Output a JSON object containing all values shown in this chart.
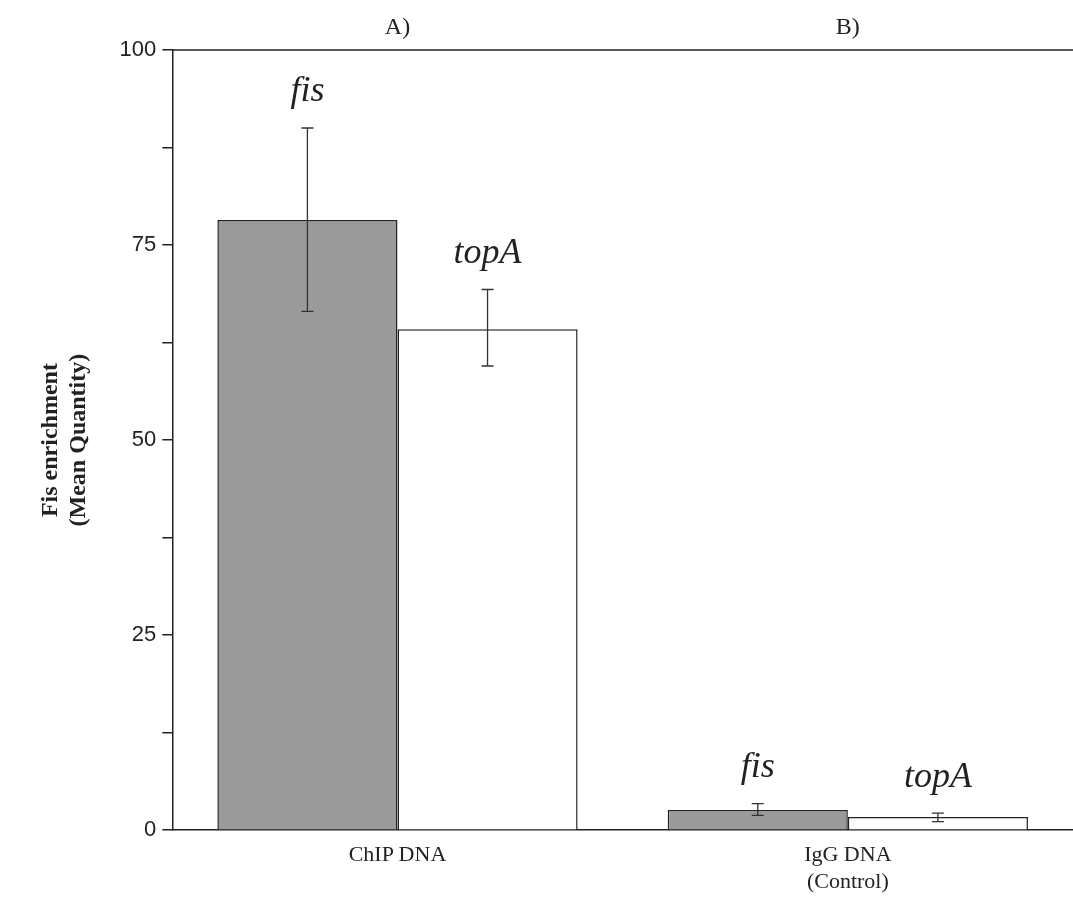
{
  "chart_data": {
    "type": "bar",
    "ylabel": "Fis enrichment\n(Mean Quantity)",
    "categories": [
      "ChIP DNA",
      "IgG DNA\n(Control)"
    ],
    "series": [
      {
        "name": "fis",
        "color": "#9a9a9a",
        "values": [
          78.2,
          2.6
        ],
        "errors": [
          [
            66.5,
            90
          ],
          [
            1.9,
            3.4
          ]
        ]
      },
      {
        "name": "topA",
        "color": "#ffffff",
        "values": [
          64.2,
          1.7
        ],
        "errors": [
          [
            59.5,
            69.3
          ],
          [
            1.1,
            2.2
          ]
        ]
      }
    ],
    "annotations": [
      "A)",
      "B)"
    ],
    "ylim": [
      0,
      100
    ],
    "yticks": [
      0,
      {
        "value": 12.5,
        "label": null
      },
      25,
      {
        "value": 37.5,
        "label": null
      },
      50,
      {
        "value": 62.5,
        "label": null
      },
      75,
      {
        "value": 87.5,
        "label": null
      },
      100
    ],
    "grid": false,
    "legend": false
  }
}
